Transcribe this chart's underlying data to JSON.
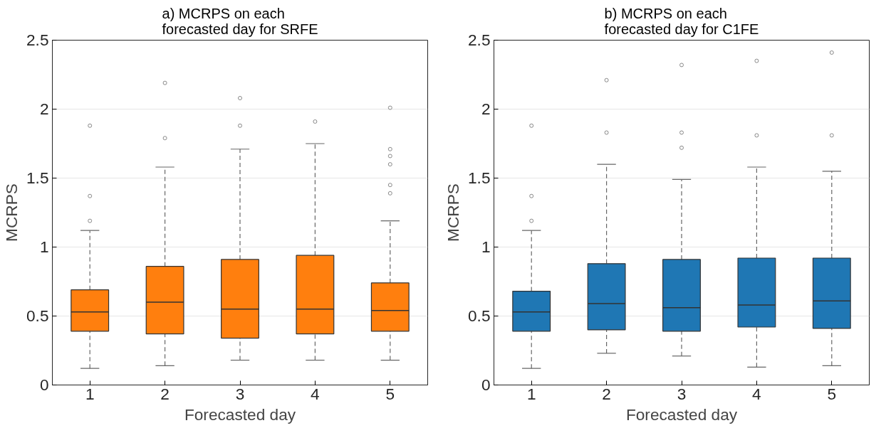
{
  "chart_data": [
    {
      "type": "box",
      "title": "a) MCRPS on each forecasted day for SRFE",
      "xlabel": "Forecasted day",
      "ylabel": "MCRPS",
      "categories": [
        "1",
        "2",
        "3",
        "4",
        "5"
      ],
      "color": "#ff7f0e",
      "ylim": [
        0,
        2.5
      ],
      "yticks": [
        0,
        0.5,
        1,
        1.5,
        2,
        2.5
      ],
      "grid": "y",
      "boxes": [
        {
          "low": 0.12,
          "q1": 0.39,
          "median": 0.53,
          "q3": 0.69,
          "high": 1.12,
          "outliers": [
            1.19,
            1.37,
            1.88
          ]
        },
        {
          "low": 0.14,
          "q1": 0.37,
          "median": 0.6,
          "q3": 0.86,
          "high": 1.58,
          "outliers": [
            1.79,
            2.19
          ]
        },
        {
          "low": 0.18,
          "q1": 0.34,
          "median": 0.55,
          "q3": 0.91,
          "high": 1.71,
          "outliers": [
            1.88,
            2.08
          ]
        },
        {
          "low": 0.18,
          "q1": 0.37,
          "median": 0.55,
          "q3": 0.94,
          "high": 1.75,
          "outliers": [
            1.91
          ]
        },
        {
          "low": 0.18,
          "q1": 0.39,
          "median": 0.54,
          "q3": 0.74,
          "high": 1.19,
          "outliers": [
            1.39,
            1.45,
            1.6,
            1.66,
            1.71,
            2.01
          ]
        }
      ]
    },
    {
      "type": "box",
      "title": "b) MCRPS on each forecasted day for C1FE",
      "xlabel": "Forecasted day",
      "ylabel": "MCRPS",
      "categories": [
        "1",
        "2",
        "3",
        "4",
        "5"
      ],
      "color": "#1f77b4",
      "ylim": [
        0,
        2.5
      ],
      "yticks": [
        0,
        0.5,
        1,
        1.5,
        2,
        2.5
      ],
      "grid": "y",
      "boxes": [
        {
          "low": 0.12,
          "q1": 0.39,
          "median": 0.53,
          "q3": 0.68,
          "high": 1.12,
          "outliers": [
            1.19,
            1.37,
            1.88
          ]
        },
        {
          "low": 0.23,
          "q1": 0.4,
          "median": 0.59,
          "q3": 0.88,
          "high": 1.6,
          "outliers": [
            1.83,
            2.21
          ]
        },
        {
          "low": 0.21,
          "q1": 0.39,
          "median": 0.56,
          "q3": 0.91,
          "high": 1.49,
          "outliers": [
            1.72,
            1.83,
            2.32
          ]
        },
        {
          "low": 0.13,
          "q1": 0.42,
          "median": 0.58,
          "q3": 0.92,
          "high": 1.58,
          "outliers": [
            1.81,
            2.35
          ]
        },
        {
          "low": 0.14,
          "q1": 0.41,
          "median": 0.61,
          "q3": 0.92,
          "high": 1.55,
          "outliers": [
            1.81,
            2.41
          ]
        }
      ]
    }
  ]
}
